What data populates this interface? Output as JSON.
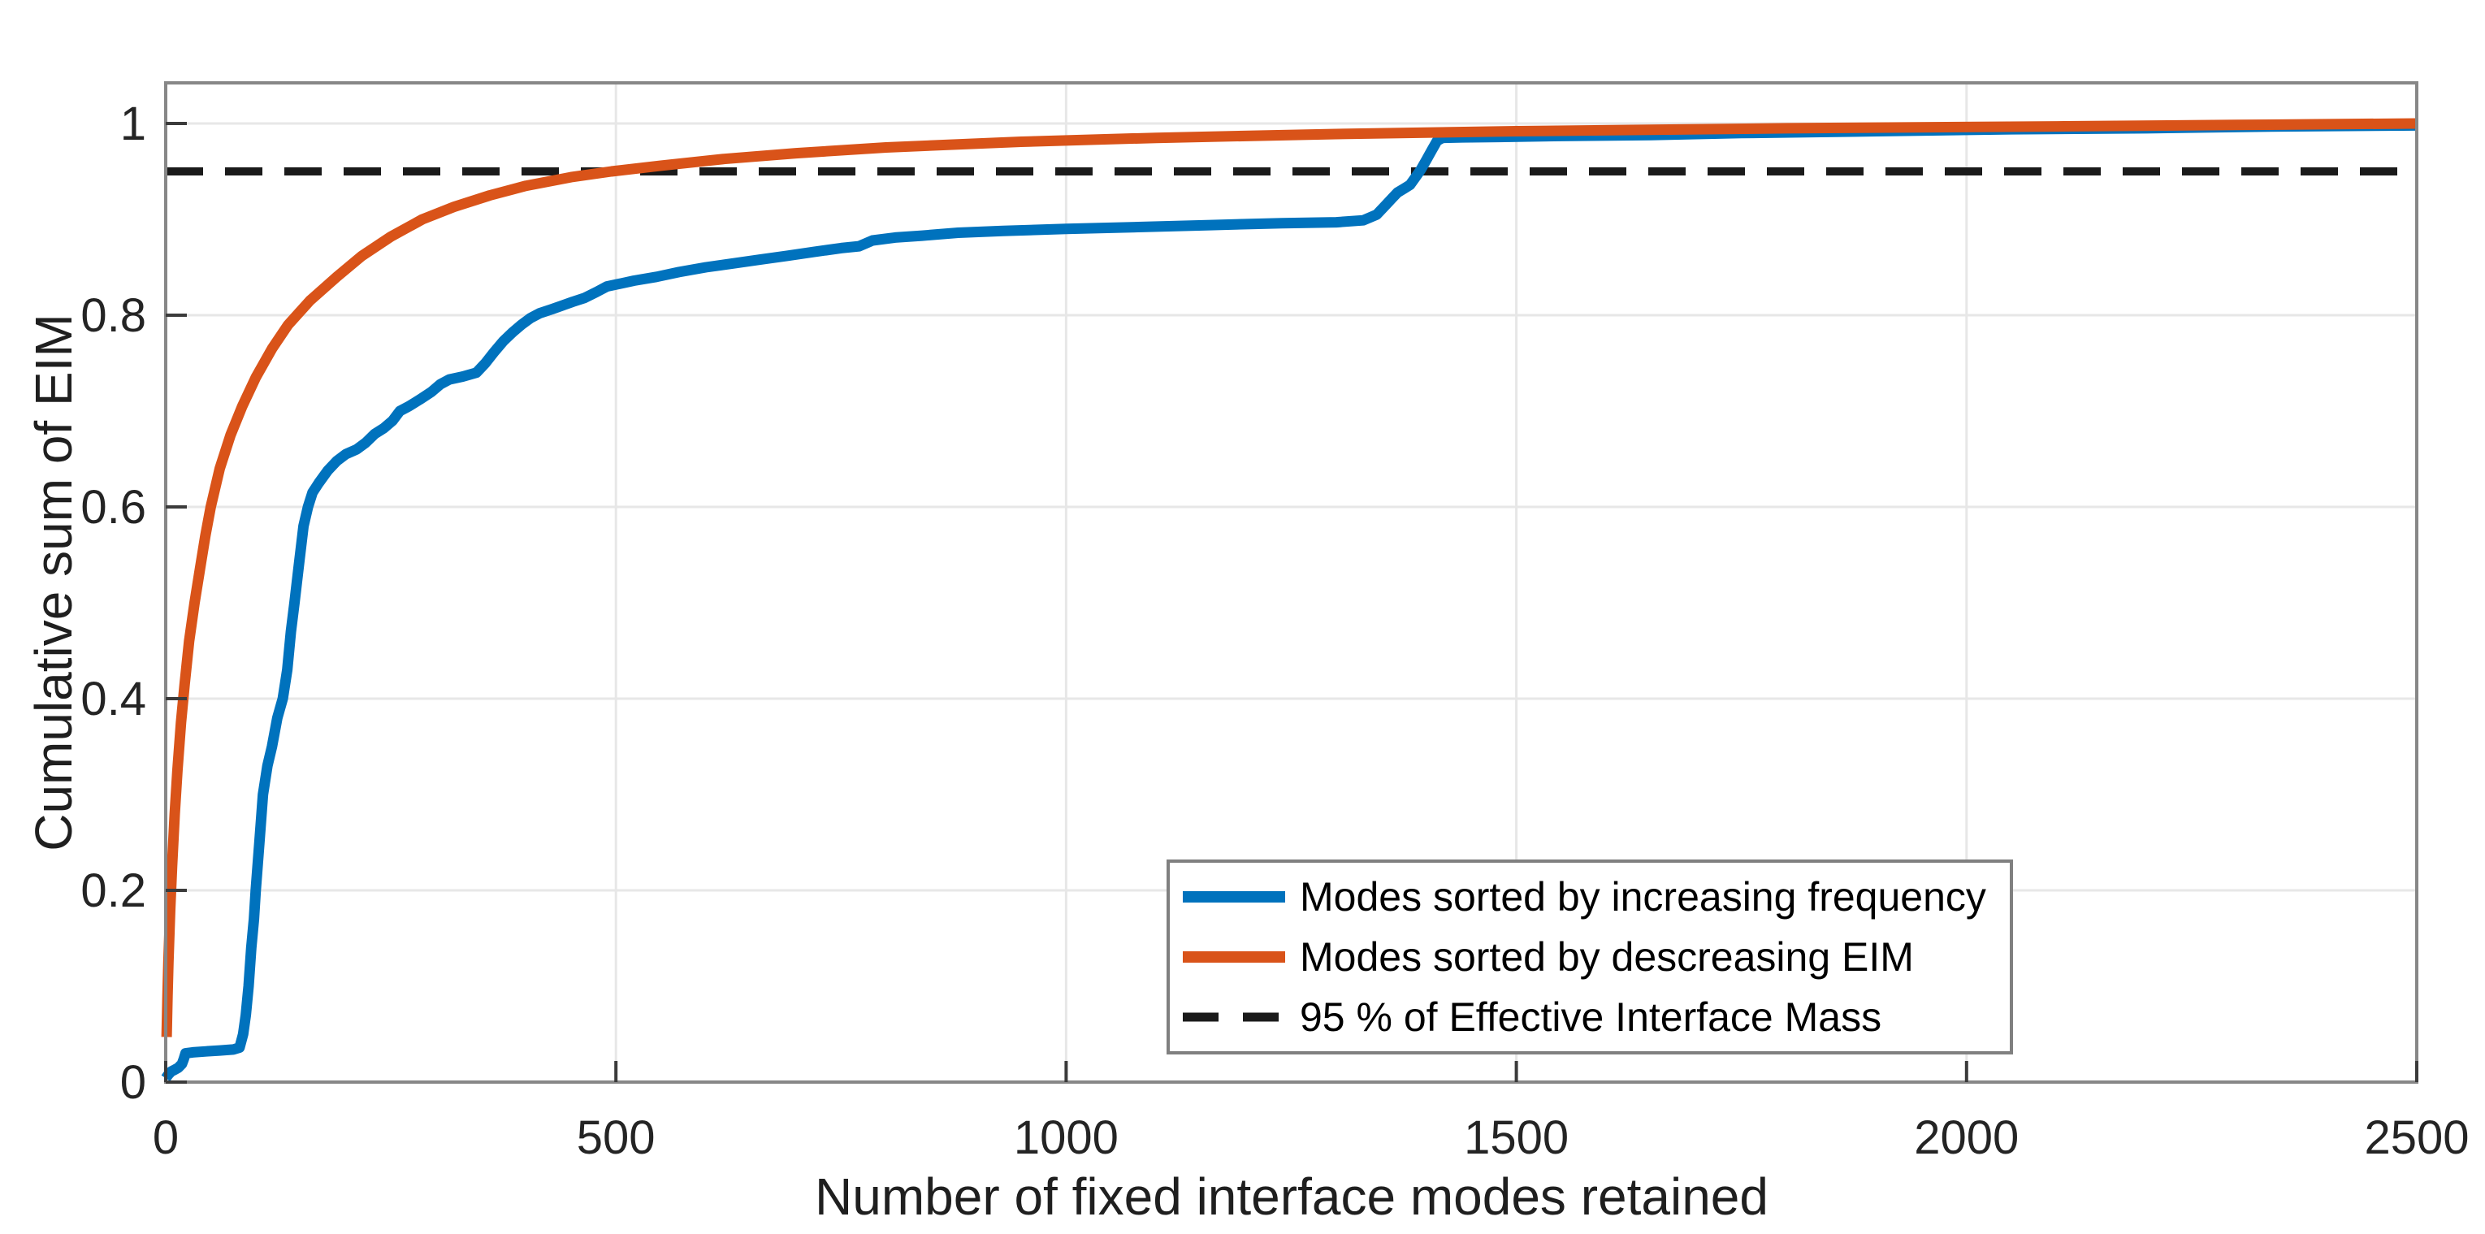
{
  "figure": {
    "background": "#ffffff",
    "plot_bg": "#ffffff",
    "grid_color": "#e7e7e7",
    "box_color": "#878787",
    "tick_color": "#3b3b3b",
    "tick_label_color": "#242424"
  },
  "legend": {
    "items": [
      {
        "label": "Modes sorted by increasing frequency",
        "style": "solid",
        "color": "#0072BD"
      },
      {
        "label": "Modes sorted by descreasing EIM",
        "style": "solid",
        "color": "#D95319"
      },
      {
        "label": "95 % of Effective Interface Mass",
        "style": "dashed",
        "color": "#1a1a1a"
      }
    ]
  },
  "chart_data": {
    "type": "line",
    "title": "",
    "xlabel": "Number of fixed interface modes retained",
    "ylabel": "Cumulative sum of EIM",
    "xlim": [
      0,
      2500
    ],
    "ylim": [
      0,
      1.0424
    ],
    "x_ticks": [
      0,
      500,
      1000,
      1500,
      2000,
      2500
    ],
    "x_tick_labels": [
      "0",
      "500",
      "1000",
      "1500",
      "2000",
      "2500"
    ],
    "y_ticks": [
      0,
      0.2,
      0.4,
      0.6,
      0.8,
      1
    ],
    "y_tick_labels": [
      "0",
      "0.2",
      "0.4",
      "0.6",
      "0.8",
      "1"
    ],
    "grid": true,
    "legend_position": "inside lower right",
    "threshold": {
      "value": 0.95,
      "label": "95 % of Effective Interface Mass",
      "style": "dashed",
      "color": "#1a1a1a"
    },
    "series": [
      {
        "name": "Modes sorted by increasing frequency",
        "color": "#0072BD",
        "points": [
          [
            0,
            0.004
          ],
          [
            3,
            0.008
          ],
          [
            6,
            0.011
          ],
          [
            10,
            0.013
          ],
          [
            14,
            0.015
          ],
          [
            18,
            0.019
          ],
          [
            20,
            0.024
          ],
          [
            22,
            0.03
          ],
          [
            30,
            0.031
          ],
          [
            45,
            0.032
          ],
          [
            60,
            0.033
          ],
          [
            75,
            0.034
          ],
          [
            82,
            0.036
          ],
          [
            86,
            0.05
          ],
          [
            89,
            0.07
          ],
          [
            92,
            0.1
          ],
          [
            95,
            0.14
          ],
          [
            98,
            0.17
          ],
          [
            100,
            0.2
          ],
          [
            104,
            0.25
          ],
          [
            108,
            0.3
          ],
          [
            113,
            0.33
          ],
          [
            118,
            0.35
          ],
          [
            124,
            0.38
          ],
          [
            130,
            0.4
          ],
          [
            135,
            0.43
          ],
          [
            139,
            0.47
          ],
          [
            143,
            0.5
          ],
          [
            148,
            0.54
          ],
          [
            153,
            0.58
          ],
          [
            158,
            0.6
          ],
          [
            163,
            0.615
          ],
          [
            170,
            0.625
          ],
          [
            180,
            0.638
          ],
          [
            190,
            0.648
          ],
          [
            200,
            0.655
          ],
          [
            212,
            0.66
          ],
          [
            222,
            0.667
          ],
          [
            232,
            0.676
          ],
          [
            242,
            0.682
          ],
          [
            252,
            0.69
          ],
          [
            260,
            0.7
          ],
          [
            270,
            0.705
          ],
          [
            282,
            0.712
          ],
          [
            295,
            0.72
          ],
          [
            305,
            0.728
          ],
          [
            315,
            0.733
          ],
          [
            330,
            0.736
          ],
          [
            345,
            0.74
          ],
          [
            355,
            0.75
          ],
          [
            365,
            0.762
          ],
          [
            375,
            0.773
          ],
          [
            385,
            0.782
          ],
          [
            395,
            0.79
          ],
          [
            405,
            0.797
          ],
          [
            415,
            0.802
          ],
          [
            428,
            0.806
          ],
          [
            440,
            0.81
          ],
          [
            452,
            0.814
          ],
          [
            465,
            0.818
          ],
          [
            478,
            0.824
          ],
          [
            490,
            0.83
          ],
          [
            500,
            0.832
          ],
          [
            520,
            0.836
          ],
          [
            545,
            0.84
          ],
          [
            570,
            0.845
          ],
          [
            600,
            0.85
          ],
          [
            630,
            0.854
          ],
          [
            660,
            0.858
          ],
          [
            690,
            0.862
          ],
          [
            720,
            0.866
          ],
          [
            750,
            0.87
          ],
          [
            770,
            0.872
          ],
          [
            785,
            0.878
          ],
          [
            810,
            0.881
          ],
          [
            840,
            0.883
          ],
          [
            880,
            0.886
          ],
          [
            930,
            0.888
          ],
          [
            1000,
            0.89
          ],
          [
            1080,
            0.892
          ],
          [
            1160,
            0.894
          ],
          [
            1240,
            0.896
          ],
          [
            1300,
            0.897
          ],
          [
            1330,
            0.899
          ],
          [
            1345,
            0.905
          ],
          [
            1355,
            0.915
          ],
          [
            1362,
            0.922
          ],
          [
            1368,
            0.928
          ],
          [
            1375,
            0.932
          ],
          [
            1382,
            0.936
          ],
          [
            1388,
            0.944
          ],
          [
            1394,
            0.952
          ],
          [
            1400,
            0.962
          ],
          [
            1406,
            0.972
          ],
          [
            1412,
            0.982
          ],
          [
            1418,
            0.985
          ],
          [
            1440,
            0.9855
          ],
          [
            1480,
            0.986
          ],
          [
            1550,
            0.987
          ],
          [
            1650,
            0.988
          ],
          [
            1750,
            0.99
          ],
          [
            1900,
            0.992
          ],
          [
            2050,
            0.994
          ],
          [
            2200,
            0.995
          ],
          [
            2350,
            0.997
          ],
          [
            2500,
            0.998
          ]
        ]
      },
      {
        "name": "Modes sorted by descreasing EIM",
        "color": "#D95319",
        "points": [
          [
            1,
            0.047
          ],
          [
            2,
            0.09
          ],
          [
            3,
            0.125
          ],
          [
            5,
            0.18
          ],
          [
            7,
            0.225
          ],
          [
            10,
            0.28
          ],
          [
            13,
            0.325
          ],
          [
            17,
            0.375
          ],
          [
            21,
            0.415
          ],
          [
            26,
            0.46
          ],
          [
            32,
            0.5
          ],
          [
            38,
            0.535
          ],
          [
            44,
            0.57
          ],
          [
            50,
            0.6
          ],
          [
            60,
            0.64
          ],
          [
            72,
            0.675
          ],
          [
            85,
            0.705
          ],
          [
            100,
            0.735
          ],
          [
            118,
            0.765
          ],
          [
            136,
            0.79
          ],
          [
            160,
            0.815
          ],
          [
            190,
            0.84
          ],
          [
            218,
            0.862
          ],
          [
            250,
            0.882
          ],
          [
            285,
            0.9
          ],
          [
            320,
            0.913
          ],
          [
            360,
            0.925
          ],
          [
            400,
            0.935
          ],
          [
            450,
            0.944
          ],
          [
            495,
            0.95
          ],
          [
            550,
            0.956
          ],
          [
            620,
            0.963
          ],
          [
            700,
            0.969
          ],
          [
            800,
            0.975
          ],
          [
            950,
            0.981
          ],
          [
            1100,
            0.985
          ],
          [
            1300,
            0.989
          ],
          [
            1500,
            0.992
          ],
          [
            1800,
            0.995
          ],
          [
            2100,
            0.997
          ],
          [
            2300,
            0.9985
          ],
          [
            2500,
            1.0
          ]
        ]
      }
    ]
  }
}
